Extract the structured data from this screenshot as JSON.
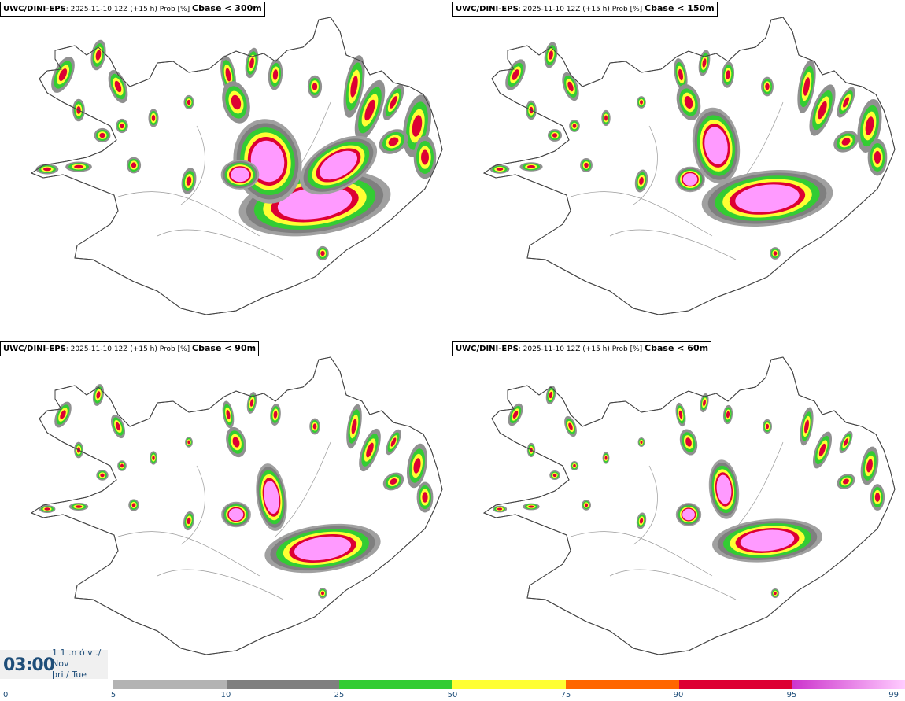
{
  "panels": [
    {
      "model": "UWC/DINI-EPS",
      "run": ": 2025-11-10 12Z (+15 h) Prob [%]",
      "threshold": "Cbase < 300m"
    },
    {
      "model": "UWC/DINI-EPS",
      "run": ": 2025-11-10 12Z (+15 h) Prob [%]",
      "threshold": "Cbase < 150m"
    },
    {
      "model": "UWC/DINI-EPS",
      "run": ": 2025-11-10 12Z (+15 h) Prob [%]",
      "threshold": "Cbase < 90m"
    },
    {
      "model": "UWC/DINI-EPS",
      "run": ": 2025-11-10 12Z (+15 h) Prob [%]",
      "threshold": "Cbase < 60m"
    }
  ],
  "clock": {
    "time": "03:00",
    "date_line1": "1 1 .n ó v ./",
    "date_line2": "Nov",
    "date_line3": "þri / Tue"
  },
  "colorbar": {
    "labels": [
      "0",
      "5",
      "10",
      "25",
      "50",
      "75",
      "90",
      "95",
      "99"
    ],
    "colors": [
      "#b3b3b3",
      "#7f7f7f",
      "#33cc33",
      "#ffff33",
      "#ff6600",
      "#dd0033",
      "#cc33cc"
    ]
  }
}
